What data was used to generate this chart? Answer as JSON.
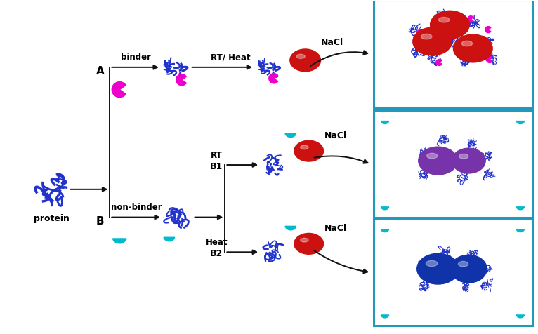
{
  "bg_color": "#ffffff",
  "fig_width": 7.66,
  "fig_height": 4.76,
  "arrow_color": "#111111",
  "line_color": "#111111",
  "protein_color": "#2233cc",
  "protein_color2": "#3344dd",
  "binder_color": "#ee00cc",
  "non_binder_color": "#00bbcc",
  "gnp_red": "#cc1111",
  "gnp_purple": "#7733aa",
  "gnp_blue": "#1133aa",
  "box_color": "#2299bb",
  "label_protein": "protein",
  "label_A": "A",
  "label_B": "B",
  "label_B1": "B1",
  "label_B2": "B2",
  "label_binder": "binder",
  "label_nonbinder": "non-binder",
  "label_RT_Heat": "RT/ Heat",
  "label_RT": "RT",
  "label_Heat": "Heat",
  "label_NaCl": "NaCl"
}
